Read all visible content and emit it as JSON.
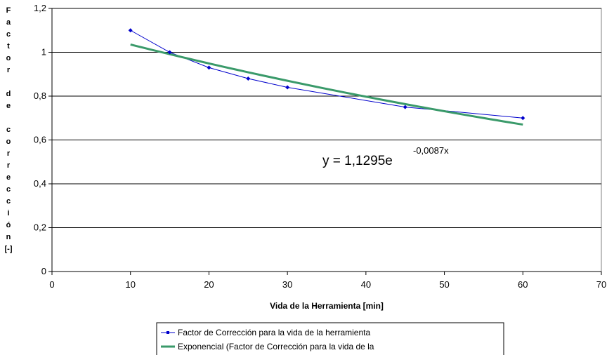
{
  "chart_data": {
    "type": "line",
    "title": "",
    "xlabel": "Vida de la Herramienta [min]",
    "ylabel_lines": [
      "F",
      "a",
      "c",
      "t",
      "o",
      "r",
      "",
      "d",
      "e",
      "",
      "c",
      "o",
      "r",
      "r",
      "e",
      "c",
      "c",
      "i",
      "ó",
      "n",
      "[-]"
    ],
    "xlim": [
      0,
      70
    ],
    "ylim": [
      0,
      1.2
    ],
    "x_ticks": [
      0,
      10,
      20,
      30,
      40,
      50,
      60,
      70
    ],
    "y_ticks": [
      0,
      0.2,
      0.4,
      0.6,
      0.8,
      1,
      1.2
    ],
    "x_tick_labels": [
      "0",
      "10",
      "20",
      "30",
      "40",
      "50",
      "60",
      "70"
    ],
    "y_tick_labels": [
      "0",
      "0,2",
      "0,4",
      "0,6",
      "0,8",
      "1",
      "1,2"
    ],
    "grid": "horizontal",
    "legend_position": "bottom",
    "series": [
      {
        "name": "Factor de Corrección para la vida de la herramienta",
        "color": "#0000cc",
        "x": [
          10,
          15,
          20,
          25,
          30,
          45,
          60
        ],
        "y": [
          1.1,
          1.0,
          0.93,
          0.88,
          0.84,
          0.75,
          0.7
        ]
      },
      {
        "name": "Exponencial (Factor de Corrección para la vida de la",
        "color": "#3a9a6a",
        "type": "trendline",
        "model": {
          "a": 1.1295,
          "b": -0.0087,
          "x_start": 10,
          "x_end": 60
        }
      }
    ],
    "annotation": {
      "base": "y = 1,1295e",
      "exponent": "-0,0087x"
    }
  }
}
